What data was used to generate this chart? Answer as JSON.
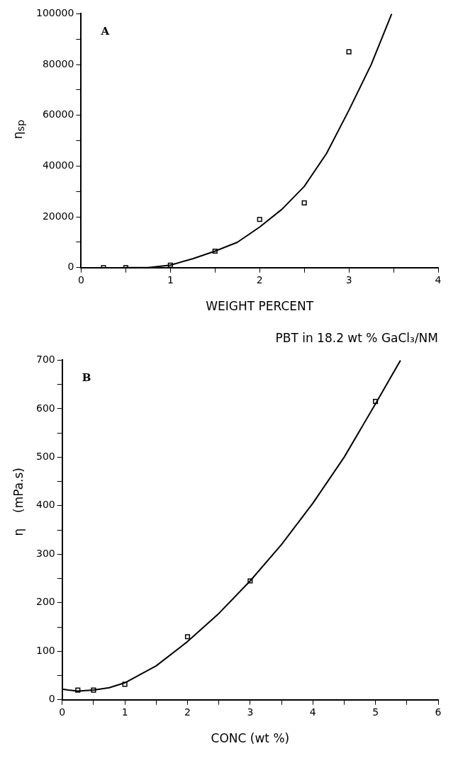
{
  "chart_data": [
    {
      "type": "scatter",
      "xlabel": "WEIGHT PERCENT",
      "ylabel": "η$_{sp}$",
      "annotations": [
        "A"
      ],
      "xlim": [
        0,
        4
      ],
      "xticks": [
        0,
        {
          "value": 0.5,
          "label": null
        },
        1,
        {
          "value": 1.5,
          "label": null
        },
        2,
        {
          "value": 2.5,
          "label": null
        },
        3,
        {
          "value": 3.5,
          "label": null
        },
        4
      ],
      "ylim": [
        0,
        100000
      ],
      "yticks": [
        0,
        {
          "value": 10000,
          "label": null
        },
        20000,
        {
          "value": 30000,
          "label": null
        },
        40000,
        {
          "value": 50000,
          "label": null
        },
        60000,
        {
          "value": 70000,
          "label": null
        },
        80000,
        {
          "value": 90000,
          "label": null
        },
        100000
      ],
      "grid": false,
      "legend": false,
      "series": [
        {
          "type": "scatter",
          "marker": "square",
          "color": "#000000",
          "x": [
            0.25,
            0.5,
            1,
            1.5,
            2,
            2.5,
            3
          ],
          "values": [
            0,
            0,
            1000,
            6500,
            19000,
            25500,
            85000
          ]
        },
        {
          "type": "line",
          "marker": "none",
          "line_style": "solid",
          "color": "#000000",
          "x": [
            0.5,
            0.75,
            1,
            1.25,
            1.5,
            1.75,
            2,
            2.25,
            2.5,
            2.75,
            3,
            3.25,
            3.48
          ],
          "values": [
            0,
            0,
            1000,
            3500,
            6500,
            10000,
            16000,
            23000,
            32000,
            45000,
            62000,
            80000,
            100000
          ]
        }
      ]
    },
    {
      "type": "scatter",
      "title": "PBT in 18.2 wt % GaCl₃/NM",
      "xlabel": "CONC (wt %)",
      "ylabel": "η    (mPa.s)",
      "annotations": [
        "B"
      ],
      "xlim": [
        0,
        6
      ],
      "xticks": [
        0,
        {
          "value": 0.5,
          "label": null
        },
        1,
        {
          "value": 1.5,
          "label": null
        },
        2,
        {
          "value": 2.5,
          "label": null
        },
        3,
        {
          "value": 3.5,
          "label": null
        },
        4,
        {
          "value": 4.5,
          "label": null
        },
        5,
        {
          "value": 5.5,
          "label": null
        },
        6
      ],
      "ylim": [
        0,
        700
      ],
      "yticks": [
        0,
        {
          "value": 50,
          "label": null
        },
        100,
        {
          "value": 150,
          "label": null
        },
        200,
        {
          "value": 250,
          "label": null
        },
        300,
        {
          "value": 350,
          "label": null
        },
        400,
        {
          "value": 450,
          "label": null
        },
        500,
        {
          "value": 550,
          "label": null
        },
        600,
        {
          "value": 650,
          "label": null
        },
        700
      ],
      "grid": false,
      "legend": false,
      "series": [
        {
          "type": "scatter",
          "marker": "square",
          "color": "#000000",
          "x": [
            0.25,
            0.5,
            1,
            2,
            3,
            5
          ],
          "values": [
            20,
            20,
            32,
            130,
            245,
            615
          ]
        },
        {
          "type": "line",
          "marker": "none",
          "line_style": "solid",
          "color": "#000000",
          "x": [
            0,
            0.1,
            0.25,
            0.5,
            0.75,
            1,
            1.5,
            2,
            2.5,
            3,
            3.5,
            4,
            4.5,
            5,
            5.4
          ],
          "values": [
            22,
            20,
            18,
            20,
            25,
            35,
            70,
            120,
            178,
            245,
            320,
            405,
            500,
            610,
            700
          ]
        }
      ]
    }
  ]
}
